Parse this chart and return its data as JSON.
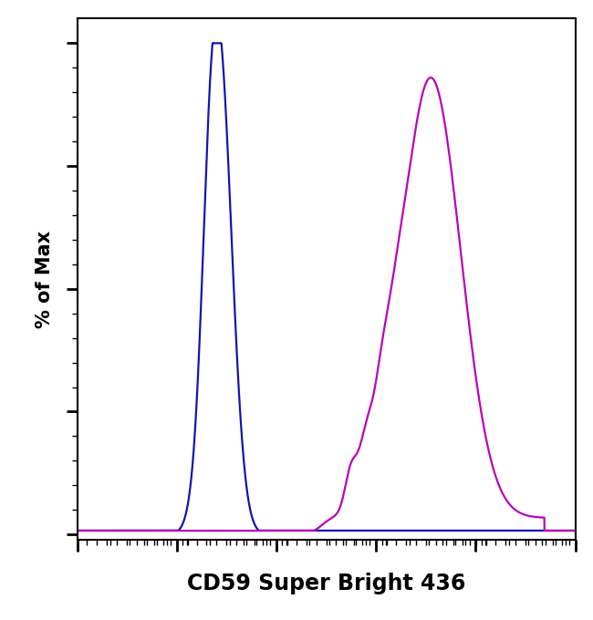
{
  "title": "",
  "xlabel": "CD59 Super Bright 436",
  "ylabel": "% of Max",
  "xlabel_fontsize": 17,
  "ylabel_fontsize": 15,
  "blue_color": "#1515aa",
  "magenta_color": "#bb00bb",
  "background_color": "#ffffff",
  "line_width": 1.6,
  "xmin": 0.0,
  "xmax": 5.0,
  "ymin": -1.0,
  "ymax": 105
}
